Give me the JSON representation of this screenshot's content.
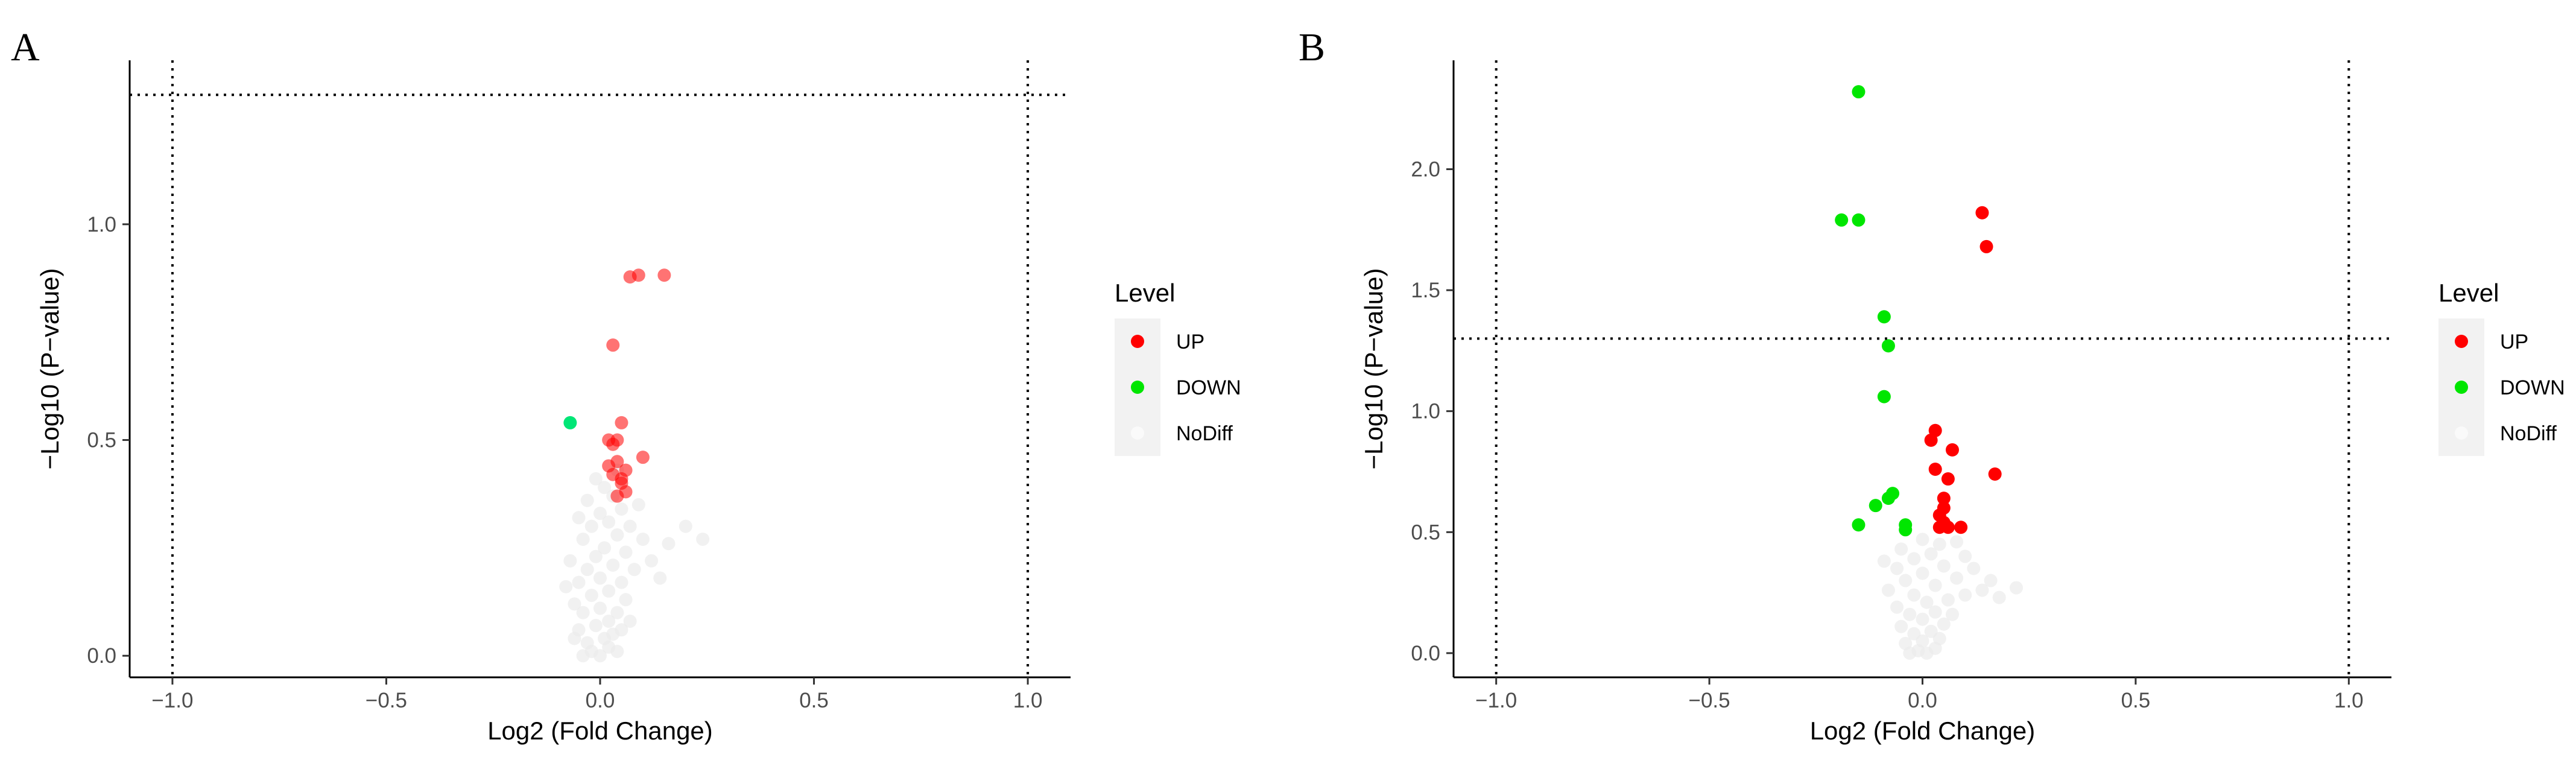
{
  "chart_data": [
    {
      "type": "scatter",
      "panel_label": "A",
      "xlabel": "Log2 (Fold Change)",
      "ylabel": "−Log10 (P−value)",
      "xlim": [
        -1.1,
        1.1
      ],
      "ylim": [
        -0.05,
        1.38
      ],
      "x_ticks": [
        -1.0,
        -0.5,
        0.0,
        0.5,
        1.0
      ],
      "x_tick_labels": [
        "−1.0",
        "−0.5",
        "0.0",
        "0.5",
        "1.0"
      ],
      "y_ticks": [
        0.0,
        0.5,
        1.0
      ],
      "y_tick_labels": [
        "0.0",
        "0.5",
        "1.0"
      ],
      "reference_lines": {
        "vertical": [
          -1.0,
          1.0
        ],
        "horizontal": [
          1.3
        ]
      },
      "grid": false,
      "legend": {
        "title": "Level",
        "position": "right",
        "entries": [
          {
            "name": "UP",
            "color": "#ff0000"
          },
          {
            "name": "DOWN",
            "color": "#00e600"
          },
          {
            "name": "NoDiff",
            "color": "#ebebeb"
          }
        ]
      },
      "series": [
        {
          "name": "UP",
          "color": "#ff0000",
          "opacity": 0.55,
          "points": [
            {
              "x": 0.07,
              "y": 0.878
            },
            {
              "x": 0.09,
              "y": 0.882
            },
            {
              "x": 0.15,
              "y": 0.882
            },
            {
              "x": 0.03,
              "y": 0.72
            },
            {
              "x": 0.05,
              "y": 0.54
            },
            {
              "x": 0.1,
              "y": 0.46
            },
            {
              "x": 0.02,
              "y": 0.5
            },
            {
              "x": 0.03,
              "y": 0.49
            },
            {
              "x": 0.04,
              "y": 0.5
            },
            {
              "x": 0.04,
              "y": 0.45
            },
            {
              "x": 0.03,
              "y": 0.42
            },
            {
              "x": 0.05,
              "y": 0.4
            },
            {
              "x": 0.06,
              "y": 0.38
            },
            {
              "x": 0.04,
              "y": 0.37
            },
            {
              "x": 0.05,
              "y": 0.41
            },
            {
              "x": 0.02,
              "y": 0.44
            },
            {
              "x": 0.06,
              "y": 0.43
            }
          ]
        },
        {
          "name": "DOWN",
          "color": "#00e676",
          "opacity": 1,
          "points": [
            {
              "x": -0.07,
              "y": 0.54
            }
          ]
        },
        {
          "name": "NoDiff",
          "color": "#ebebeb",
          "opacity": 0.7,
          "points": [
            {
              "x": -0.04,
              "y": 0.0
            },
            {
              "x": -0.02,
              "y": 0.01
            },
            {
              "x": 0.0,
              "y": 0.0
            },
            {
              "x": 0.02,
              "y": 0.02
            },
            {
              "x": 0.04,
              "y": 0.01
            },
            {
              "x": -0.03,
              "y": 0.03
            },
            {
              "x": 0.01,
              "y": 0.04
            },
            {
              "x": 0.03,
              "y": 0.05
            },
            {
              "x": -0.05,
              "y": 0.06
            },
            {
              "x": -0.01,
              "y": 0.07
            },
            {
              "x": 0.05,
              "y": 0.06
            },
            {
              "x": 0.02,
              "y": 0.08
            },
            {
              "x": -0.04,
              "y": 0.1
            },
            {
              "x": 0.0,
              "y": 0.11
            },
            {
              "x": 0.04,
              "y": 0.1
            },
            {
              "x": -0.06,
              "y": 0.12
            },
            {
              "x": 0.06,
              "y": 0.13
            },
            {
              "x": -0.02,
              "y": 0.14
            },
            {
              "x": 0.02,
              "y": 0.15
            },
            {
              "x": -0.05,
              "y": 0.17
            },
            {
              "x": 0.0,
              "y": 0.18
            },
            {
              "x": 0.05,
              "y": 0.17
            },
            {
              "x": -0.03,
              "y": 0.2
            },
            {
              "x": 0.03,
              "y": 0.21
            },
            {
              "x": 0.08,
              "y": 0.2
            },
            {
              "x": -0.07,
              "y": 0.22
            },
            {
              "x": -0.01,
              "y": 0.23
            },
            {
              "x": 0.01,
              "y": 0.25
            },
            {
              "x": 0.06,
              "y": 0.24
            },
            {
              "x": -0.04,
              "y": 0.27
            },
            {
              "x": 0.04,
              "y": 0.28
            },
            {
              "x": 0.1,
              "y": 0.27
            },
            {
              "x": -0.02,
              "y": 0.3
            },
            {
              "x": 0.02,
              "y": 0.31
            },
            {
              "x": 0.07,
              "y": 0.3
            },
            {
              "x": -0.05,
              "y": 0.32
            },
            {
              "x": 0.0,
              "y": 0.33
            },
            {
              "x": 0.05,
              "y": 0.34
            },
            {
              "x": -0.03,
              "y": 0.36
            },
            {
              "x": 0.03,
              "y": 0.37
            },
            {
              "x": 0.01,
              "y": 0.39
            },
            {
              "x": -0.01,
              "y": 0.41
            },
            {
              "x": 0.04,
              "y": 0.43
            },
            {
              "x": 0.12,
              "y": 0.22
            },
            {
              "x": 0.16,
              "y": 0.26
            },
            {
              "x": 0.2,
              "y": 0.3
            },
            {
              "x": 0.24,
              "y": 0.27
            },
            {
              "x": -0.08,
              "y": 0.16
            },
            {
              "x": 0.14,
              "y": 0.18
            },
            {
              "x": 0.09,
              "y": 0.35
            },
            {
              "x": -0.06,
              "y": 0.04
            },
            {
              "x": 0.07,
              "y": 0.08
            }
          ]
        }
      ]
    },
    {
      "type": "scatter",
      "panel_label": "B",
      "xlabel": "Log2 (Fold Change)",
      "ylabel": "−Log10 (P−value)",
      "xlim": [
        -1.1,
        1.1
      ],
      "ylim": [
        -0.1,
        2.45
      ],
      "x_ticks": [
        -1.0,
        -0.5,
        0.0,
        0.5,
        1.0
      ],
      "x_tick_labels": [
        "−1.0",
        "−0.5",
        "0.0",
        "0.5",
        "1.0"
      ],
      "y_ticks": [
        0.0,
        0.5,
        1.0,
        1.5,
        2.0
      ],
      "y_tick_labels": [
        "0.0",
        "0.5",
        "1.0",
        "1.5",
        "2.0"
      ],
      "reference_lines": {
        "vertical": [
          -1.0,
          1.0
        ],
        "horizontal": [
          1.3
        ]
      },
      "grid": false,
      "legend": {
        "title": "Level",
        "position": "right",
        "entries": [
          {
            "name": "UP",
            "color": "#ff0000"
          },
          {
            "name": "DOWN",
            "color": "#00e600"
          },
          {
            "name": "NoDiff",
            "color": "#ebebeb"
          }
        ]
      },
      "series": [
        {
          "name": "UP",
          "color": "#ff0000",
          "opacity": 1,
          "points": [
            {
              "x": 0.14,
              "y": 1.82
            },
            {
              "x": 0.15,
              "y": 1.68
            },
            {
              "x": 0.03,
              "y": 0.92
            },
            {
              "x": 0.02,
              "y": 0.88
            },
            {
              "x": 0.07,
              "y": 0.84
            },
            {
              "x": 0.03,
              "y": 0.76
            },
            {
              "x": 0.17,
              "y": 0.74
            },
            {
              "x": 0.06,
              "y": 0.72
            },
            {
              "x": 0.05,
              "y": 0.64
            },
            {
              "x": 0.05,
              "y": 0.6
            },
            {
              "x": 0.04,
              "y": 0.57
            },
            {
              "x": 0.05,
              "y": 0.54
            },
            {
              "x": 0.06,
              "y": 0.52
            },
            {
              "x": 0.09,
              "y": 0.52
            },
            {
              "x": 0.04,
              "y": 0.52
            }
          ]
        },
        {
          "name": "DOWN",
          "color": "#00e600",
          "opacity": 1,
          "points": [
            {
              "x": -0.15,
              "y": 2.32
            },
            {
              "x": -0.19,
              "y": 1.79
            },
            {
              "x": -0.15,
              "y": 1.79
            },
            {
              "x": -0.09,
              "y": 1.39
            },
            {
              "x": -0.08,
              "y": 1.27
            },
            {
              "x": -0.09,
              "y": 1.06
            },
            {
              "x": -0.07,
              "y": 0.66
            },
            {
              "x": -0.08,
              "y": 0.64
            },
            {
              "x": -0.11,
              "y": 0.61
            },
            {
              "x": -0.15,
              "y": 0.53
            },
            {
              "x": -0.04,
              "y": 0.53
            },
            {
              "x": -0.04,
              "y": 0.51
            }
          ]
        },
        {
          "name": "NoDiff",
          "color": "#ebebeb",
          "opacity": 0.7,
          "points": [
            {
              "x": -0.03,
              "y": 0.0
            },
            {
              "x": -0.01,
              "y": 0.01
            },
            {
              "x": 0.01,
              "y": 0.0
            },
            {
              "x": 0.03,
              "y": 0.02
            },
            {
              "x": -0.04,
              "y": 0.04
            },
            {
              "x": 0.0,
              "y": 0.05
            },
            {
              "x": 0.04,
              "y": 0.06
            },
            {
              "x": -0.02,
              "y": 0.08
            },
            {
              "x": 0.02,
              "y": 0.09
            },
            {
              "x": -0.05,
              "y": 0.11
            },
            {
              "x": 0.05,
              "y": 0.12
            },
            {
              "x": 0.0,
              "y": 0.14
            },
            {
              "x": -0.03,
              "y": 0.16
            },
            {
              "x": 0.03,
              "y": 0.17
            },
            {
              "x": 0.07,
              "y": 0.16
            },
            {
              "x": -0.06,
              "y": 0.19
            },
            {
              "x": 0.01,
              "y": 0.21
            },
            {
              "x": 0.06,
              "y": 0.22
            },
            {
              "x": -0.02,
              "y": 0.24
            },
            {
              "x": 0.1,
              "y": 0.24
            },
            {
              "x": 0.14,
              "y": 0.26
            },
            {
              "x": 0.18,
              "y": 0.23
            },
            {
              "x": 0.22,
              "y": 0.27
            },
            {
              "x": -0.08,
              "y": 0.26
            },
            {
              "x": 0.03,
              "y": 0.28
            },
            {
              "x": -0.04,
              "y": 0.3
            },
            {
              "x": 0.08,
              "y": 0.31
            },
            {
              "x": 0.0,
              "y": 0.33
            },
            {
              "x": -0.06,
              "y": 0.35
            },
            {
              "x": 0.05,
              "y": 0.36
            },
            {
              "x": 0.12,
              "y": 0.35
            },
            {
              "x": -0.02,
              "y": 0.39
            },
            {
              "x": 0.02,
              "y": 0.41
            },
            {
              "x": 0.1,
              "y": 0.4
            },
            {
              "x": -0.05,
              "y": 0.43
            },
            {
              "x": 0.04,
              "y": 0.45
            },
            {
              "x": 0.0,
              "y": 0.47
            },
            {
              "x": -0.09,
              "y": 0.38
            },
            {
              "x": 0.16,
              "y": 0.3
            },
            {
              "x": 0.08,
              "y": 0.46
            }
          ]
        }
      ]
    }
  ]
}
